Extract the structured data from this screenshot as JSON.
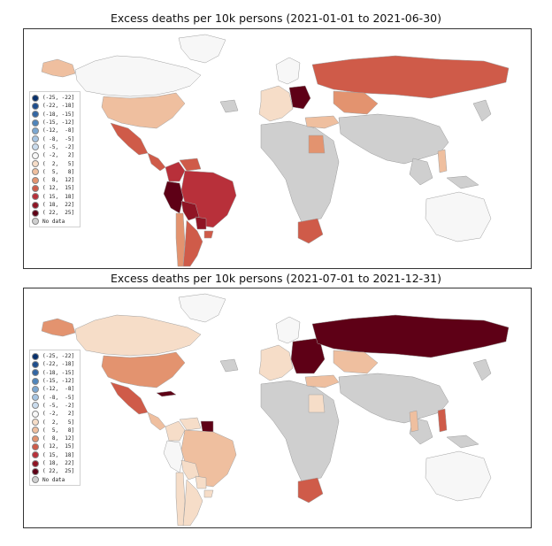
{
  "figure": {
    "panels": [
      {
        "title": "Excess deaths per 10k persons (2021-01-01 to 2021-06-30)",
        "countries": {
          "us": "( 5,  8]",
          "canada": "(-2,  2]",
          "alaska": "( 5,  8]",
          "greenland": "(-2,  2]",
          "mexico": "( 12, 15]",
          "central_america": "( 12, 15]",
          "colombia": "( 15, 18]",
          "venezuela": "( 12, 15]",
          "peru": "( 22, 25]",
          "brazil": "( 15, 18]",
          "bolivia": "( 18, 22]",
          "paraguay": "( 18, 22]",
          "argentina": "( 12, 15]",
          "chile": "( 8, 12]",
          "uruguay": "( 12, 15]",
          "russia": "( 12, 15]",
          "kazakhstan": "( 8, 12]",
          "poland_ce": "( 22, 25]",
          "western_europe": "( 2,  5]",
          "scandinavia": "(-2,  2]",
          "turkey": "( 5,  8]",
          "egypt": "( 8, 12]",
          "south_africa": "( 12, 15]",
          "australia": "(-2,  2]",
          "philippines": "( 5,  8]"
        }
      },
      {
        "title": "Excess deaths per 10k persons (2021-07-01 to 2021-12-31)",
        "countries": {
          "us": "( 8, 12]",
          "canada": "( 2,  5]",
          "alaska": "( 8, 12]",
          "greenland": "(-2,  2]",
          "mexico": "( 12, 15]",
          "central_america": "( 5,  8]",
          "cuba": "( 22, 25]",
          "colombia": "( 2,  5]",
          "venezuela": "( 2,  5]",
          "peru": "(-2,  2]",
          "brazil": "( 5,  8]",
          "bolivia": "( 2,  5]",
          "paraguay": "( 2,  5]",
          "argentina": "( 2,  5]",
          "chile": "( 2,  5]",
          "uruguay": "( 2,  5]",
          "guyana": "( 22, 25]",
          "russia": "( 22, 25]",
          "kazakhstan": "( 5,  8]",
          "eastern_europe": "( 22, 25]",
          "western_europe": "( 2,  5]",
          "scandinavia": "(-2,  2]",
          "turkey": "( 5,  8]",
          "egypt": "( 2,  5]",
          "south_africa": "( 12, 15]",
          "australia": "(-2,  2]",
          "philippines": "( 12, 15]",
          "vietnam": "( 5,  8]"
        }
      }
    ],
    "legend": [
      {
        "label": "(-25, -22]",
        "color": "#08306b"
      },
      {
        "label": "(-22, -18]",
        "color": "#1e4d8c"
      },
      {
        "label": "(-18, -15]",
        "color": "#3366a3"
      },
      {
        "label": "(-15, -12]",
        "color": "#4f85bb"
      },
      {
        "label": "(-12,  -8]",
        "color": "#7ba7d1"
      },
      {
        "label": "( -8,  -5]",
        "color": "#a6c5e3"
      },
      {
        "label": "( -5,  -2]",
        "color": "#cadcee"
      },
      {
        "label": "( -2,   2]",
        "color": "#f7f7f7"
      },
      {
        "label": "(  2,   5]",
        "color": "#f6ddc8"
      },
      {
        "label": "(  5,   8]",
        "color": "#efbf9f"
      },
      {
        "label": "(  8,  12]",
        "color": "#e3936f"
      },
      {
        "label": "( 12,  15]",
        "color": "#cf5b49"
      },
      {
        "label": "( 15,  18]",
        "color": "#b8303a"
      },
      {
        "label": "( 18,  22]",
        "color": "#8f1424"
      },
      {
        "label": "( 22,  25]",
        "color": "#5e0016"
      },
      {
        "label": "No data",
        "color": "#cfcfcf"
      }
    ]
  }
}
